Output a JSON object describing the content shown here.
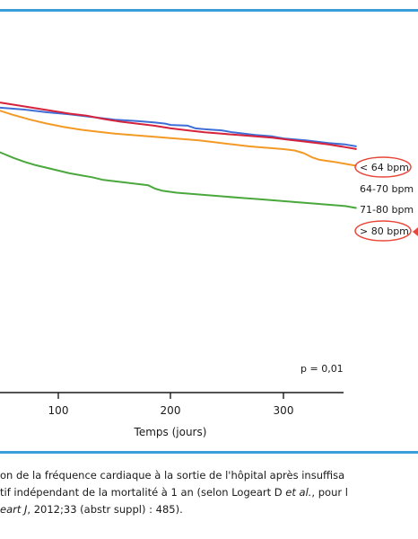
{
  "caption": {
    "line1": "on de la fréquence cardiaque à la sortie de l'hôpital après insuffisa",
    "line2_pre": "tif indépendant de la mortalité à 1 an (selon Logeart D ",
    "line2_italic": "et al.",
    "line2_post": ", pour l",
    "line3_italic": "eart J",
    "line3_post": ", 2012;33 (abstr suppl) : 485)."
  },
  "chart_data": {
    "type": "line",
    "xlabel": "Temps (jours)",
    "x_ticks": [
      100,
      200,
      300
    ],
    "x_range": [
      -52,
      365
    ],
    "y_range": [
      0.749,
      1.0
    ],
    "annotation": "p = 0,01",
    "series": [
      {
        "name": "< 64 bpm",
        "color": "#3f6fd6",
        "circled": true,
        "x": [
          -52,
          -48,
          -44,
          -40,
          -36,
          -32,
          -28,
          -24,
          -20,
          -15,
          -10,
          -5,
          0,
          5,
          10,
          20,
          30,
          40,
          55,
          70,
          90,
          110,
          130,
          150,
          170,
          185,
          195,
          200,
          215,
          222,
          228,
          236,
          245,
          255,
          265,
          275,
          290,
          300,
          320,
          340,
          355,
          365
        ],
        "y": [
          1.0,
          0.998,
          0.994,
          0.99,
          0.986,
          0.982,
          0.977,
          0.972,
          0.967,
          0.962,
          0.959,
          0.955,
          0.952,
          0.949,
          0.946,
          0.942,
          0.939,
          0.937,
          0.935,
          0.933,
          0.929,
          0.926,
          0.922,
          0.918,
          0.916,
          0.914,
          0.912,
          0.91,
          0.909,
          0.905,
          0.904,
          0.903,
          0.902,
          0.899,
          0.897,
          0.895,
          0.893,
          0.89,
          0.887,
          0.883,
          0.881,
          0.878
        ]
      },
      {
        "name": "64-70 bpm",
        "color": "#d6223a",
        "circled": false,
        "x": [
          -52,
          -45,
          -38,
          -32,
          -26,
          -20,
          -15,
          -10,
          -5,
          0,
          5,
          15,
          25,
          35,
          50,
          65,
          80,
          95,
          110,
          125,
          140,
          155,
          170,
          185,
          200,
          215,
          230,
          245,
          260,
          275,
          290,
          305,
          320,
          340,
          355,
          365
        ],
        "y": [
          1.0,
          0.996,
          0.991,
          0.986,
          0.982,
          0.978,
          0.974,
          0.97,
          0.967,
          0.964,
          0.96,
          0.955,
          0.951,
          0.947,
          0.943,
          0.939,
          0.935,
          0.931,
          0.927,
          0.924,
          0.919,
          0.915,
          0.912,
          0.909,
          0.905,
          0.902,
          0.899,
          0.897,
          0.895,
          0.893,
          0.891,
          0.888,
          0.885,
          0.881,
          0.877,
          0.874
        ]
      },
      {
        "name": "71-80 bpm",
        "color": "#f39a26",
        "circled": false,
        "x": [
          -52,
          -46,
          -40,
          -34,
          -28,
          -22,
          -16,
          -10,
          -5,
          0,
          8,
          18,
          30,
          45,
          60,
          75,
          90,
          105,
          120,
          135,
          150,
          165,
          180,
          195,
          210,
          225,
          240,
          255,
          270,
          285,
          300,
          310,
          318,
          325,
          332,
          345,
          355,
          365
        ],
        "y": [
          1.0,
          0.995,
          0.989,
          0.983,
          0.977,
          0.972,
          0.967,
          0.962,
          0.959,
          0.956,
          0.951,
          0.946,
          0.94,
          0.933,
          0.925,
          0.918,
          0.912,
          0.907,
          0.903,
          0.9,
          0.897,
          0.895,
          0.893,
          0.891,
          0.889,
          0.887,
          0.884,
          0.881,
          0.878,
          0.876,
          0.874,
          0.872,
          0.868,
          0.862,
          0.858,
          0.855,
          0.852,
          0.849
        ]
      },
      {
        "name": "> 80 bpm",
        "color": "#4aa83d",
        "circled": true,
        "x": [
          -52,
          -48,
          -44,
          -40,
          -36,
          -32,
          -28,
          -24,
          -20,
          -16,
          -12,
          -8,
          -4,
          0,
          6,
          12,
          20,
          30,
          40,
          50,
          60,
          70,
          80,
          90,
          100,
          110,
          120,
          130,
          140,
          150,
          160,
          170,
          180,
          186,
          192,
          205,
          220,
          235,
          250,
          265,
          280,
          295,
          310,
          325,
          340,
          355,
          365
        ],
        "y": [
          1.0,
          0.994,
          0.986,
          0.978,
          0.97,
          0.962,
          0.954,
          0.946,
          0.939,
          0.933,
          0.928,
          0.922,
          0.917,
          0.911,
          0.904,
          0.897,
          0.89,
          0.882,
          0.875,
          0.868,
          0.861,
          0.855,
          0.85,
          0.846,
          0.842,
          0.838,
          0.835,
          0.832,
          0.828,
          0.826,
          0.824,
          0.822,
          0.82,
          0.815,
          0.812,
          0.809,
          0.807,
          0.805,
          0.803,
          0.801,
          0.799,
          0.797,
          0.795,
          0.793,
          0.791,
          0.789,
          0.786
        ]
      }
    ]
  }
}
